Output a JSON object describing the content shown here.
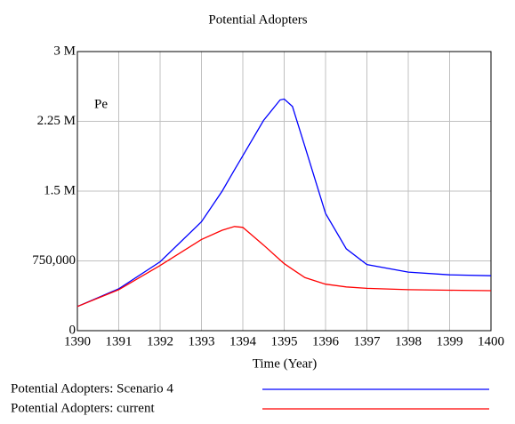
{
  "chart_data": {
    "type": "line",
    "title": "Potential Adopters",
    "x_label": "Time (Year)",
    "annotation": "Pe",
    "x": [
      1390,
      1391,
      1392,
      1393,
      1393.5,
      1393.8,
      1394,
      1394.5,
      1394.9,
      1395,
      1395.2,
      1395.5,
      1396,
      1396.5,
      1397,
      1398,
      1399,
      1400
    ],
    "series": [
      {
        "name": "Potential Adopters: Scenario 4",
        "color": "#0000ff",
        "values": [
          260000,
          450000,
          740000,
          1170000,
          1500000,
          1730000,
          1880000,
          2260000,
          2480000,
          2490000,
          2410000,
          1980000,
          1260000,
          880000,
          710000,
          630000,
          600000,
          590000
        ]
      },
      {
        "name": "Potential Adopters: current",
        "color": "#ff0000",
        "values": [
          260000,
          440000,
          700000,
          980000,
          1080000,
          1120000,
          1110000,
          920000,
          760000,
          720000,
          660000,
          570000,
          500000,
          470000,
          455000,
          440000,
          435000,
          430000
        ]
      }
    ],
    "xlim": [
      1390,
      1400
    ],
    "xticks": [
      1390,
      1391,
      1392,
      1393,
      1394,
      1395,
      1396,
      1397,
      1398,
      1399,
      1400
    ],
    "ylim": [
      0,
      3000000
    ],
    "yticks": [
      0,
      {
        "value": 750000,
        "label": "750,000"
      },
      {
        "value": 1500000,
        "label": "1.5 M"
      },
      {
        "value": 2250000,
        "label": "2.25 M"
      },
      {
        "value": 3000000,
        "label": "3 M"
      }
    ],
    "grid": true
  }
}
